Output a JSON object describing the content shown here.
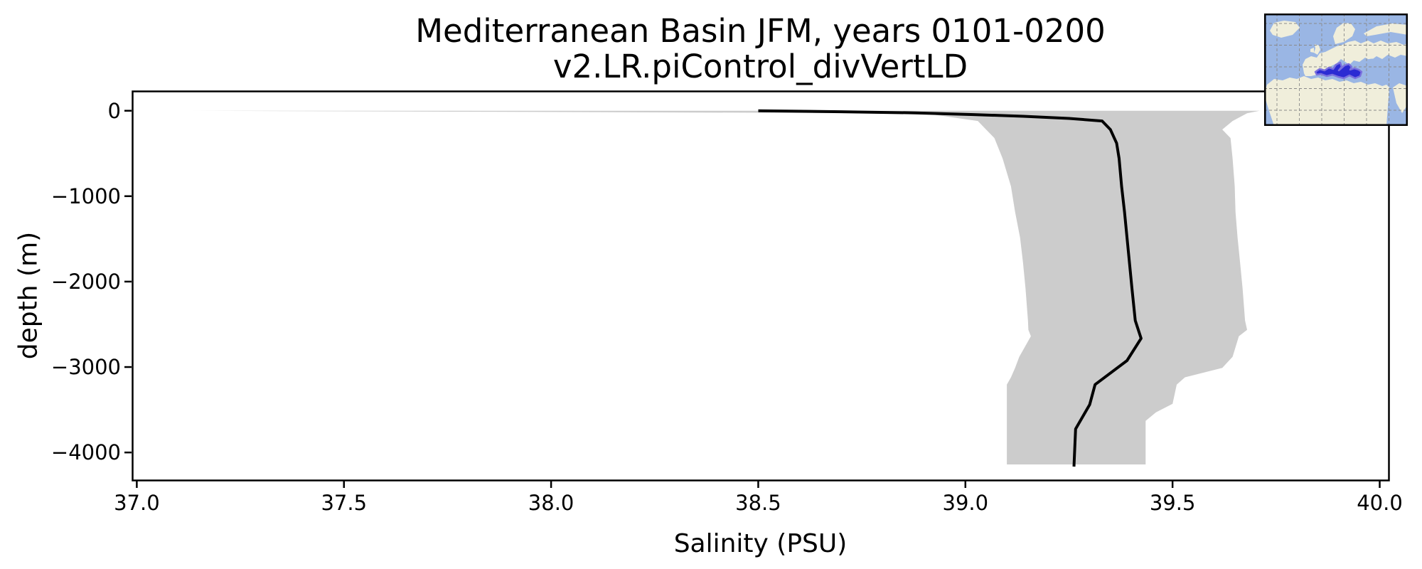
{
  "figure": {
    "title_line1": "Mediterranean Basin JFM, years 0101-0200",
    "title_line2": "v2.LR.piControl_divVertLD",
    "xlabel": "Salinity (PSU)",
    "ylabel": "depth (m)"
  },
  "chart_data": {
    "type": "line",
    "title": "Mediterranean Basin JFM, years 0101-0200 v2.LR.piControl_divVertLD",
    "xlabel": "Salinity (PSU)",
    "ylabel": "depth (m)",
    "xlim": [
      36.99,
      40.02
    ],
    "ylim": [
      -4324,
      230
    ],
    "grid": false,
    "legend": "none",
    "xticks": [
      {
        "v": 37.0,
        "label": "37.0"
      },
      {
        "v": 37.5,
        "label": "37.5"
      },
      {
        "v": 38.0,
        "label": "38.0"
      },
      {
        "v": 38.5,
        "label": "38.5"
      },
      {
        "v": 39.0,
        "label": "39.0"
      },
      {
        "v": 39.5,
        "label": "39.5"
      },
      {
        "v": 40.0,
        "label": "40.0"
      }
    ],
    "yticks": [
      {
        "v": 0,
        "label": "0"
      },
      {
        "v": -1000,
        "label": "−1000"
      },
      {
        "v": -2000,
        "label": "−2000"
      },
      {
        "v": -3000,
        "label": "−3000"
      },
      {
        "v": -4000,
        "label": "−4000"
      }
    ],
    "series": [
      {
        "name": "mean-salinity-profile",
        "style": "line",
        "color": "#000000",
        "linewidth": 4,
        "points_salinity_depth": [
          [
            38.5,
            0
          ],
          [
            38.7,
            -12
          ],
          [
            38.88,
            -25
          ],
          [
            39.02,
            -45
          ],
          [
            39.14,
            -65
          ],
          [
            39.25,
            -90
          ],
          [
            39.33,
            -120
          ],
          [
            39.35,
            -220
          ],
          [
            39.365,
            -380
          ],
          [
            39.371,
            -560
          ],
          [
            39.377,
            -885
          ],
          [
            39.384,
            -1185
          ],
          [
            39.39,
            -1485
          ],
          [
            39.396,
            -1775
          ],
          [
            39.402,
            -2075
          ],
          [
            39.41,
            -2455
          ],
          [
            39.424,
            -2665
          ],
          [
            39.39,
            -2925
          ],
          [
            39.313,
            -3205
          ],
          [
            39.3,
            -3440
          ],
          [
            39.266,
            -3725
          ],
          [
            39.262,
            -4165
          ]
        ]
      },
      {
        "name": "min-max-envelope",
        "style": "band",
        "color": "#cccccc",
        "band_depth_min_max": [
          [
            0,
            37.13,
            39.71
          ],
          [
            -30,
            38.9,
            39.68
          ],
          [
            -120,
            39.03,
            39.645
          ],
          [
            -220,
            39.05,
            39.62
          ],
          [
            -320,
            39.07,
            39.64
          ],
          [
            -560,
            39.09,
            39.645
          ],
          [
            -885,
            39.11,
            39.65
          ],
          [
            -1185,
            39.12,
            39.652
          ],
          [
            -1485,
            39.132,
            39.657
          ],
          [
            -1775,
            39.139,
            39.663
          ],
          [
            -2075,
            39.145,
            39.669
          ],
          [
            -2455,
            39.151,
            39.675
          ],
          [
            -2565,
            39.152,
            39.68
          ],
          [
            -2640,
            39.158,
            39.66
          ],
          [
            -2880,
            39.13,
            39.645
          ],
          [
            -3010,
            39.12,
            39.62
          ],
          [
            -3120,
            39.11,
            39.53
          ],
          [
            -3205,
            39.1,
            39.51
          ],
          [
            -3430,
            39.1,
            39.5
          ],
          [
            -3530,
            39.1,
            39.46
          ],
          [
            -3630,
            39.1,
            39.435
          ],
          [
            -4140,
            39.1,
            39.435
          ]
        ]
      }
    ],
    "inset_map": {
      "region": "Mediterranean Basin",
      "ocean_color": "#9ab6e4",
      "land_color": "#f0eedb",
      "highlight_fill": "#2b2bd3",
      "highlight_edge": "#7a70dd",
      "grid_color": "#8a8a8a",
      "border_color": "#000000"
    }
  }
}
